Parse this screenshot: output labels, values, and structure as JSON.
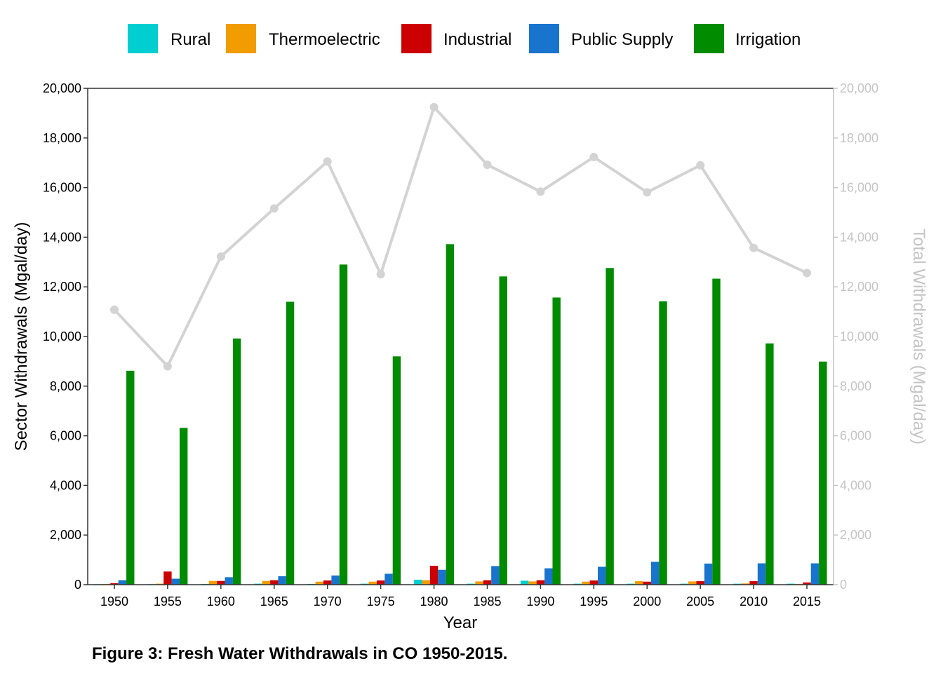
{
  "chart_data": {
    "type": "bar",
    "caption": "Figure 3: Fresh Water Withdrawals in CO 1950-2015.",
    "xlabel": "Year",
    "ylabel": "Sector Withdrawals (Mgal/day)",
    "y2label": "Total Withdrawals (Mgal/day)",
    "ylim": [
      0,
      20000
    ],
    "y2lim": [
      0,
      20000
    ],
    "yticks": [
      "0",
      "2,000",
      "4,000",
      "6,000",
      "8,000",
      "10,000",
      "12,000",
      "14,000",
      "16,000",
      "18,000",
      "20,000"
    ],
    "ytick_values": [
      0,
      2000,
      4000,
      6000,
      8000,
      10000,
      12000,
      14000,
      16000,
      18000,
      20000
    ],
    "legend_position": "top",
    "categories": [
      "1950",
      "1955",
      "1960",
      "1965",
      "1970",
      "1975",
      "1980",
      "1985",
      "1990",
      "1995",
      "2000",
      "2005",
      "2010",
      "2015"
    ],
    "series": [
      {
        "name": "Rural",
        "color": "#00ced1",
        "values": [
          20,
          20,
          30,
          40,
          30,
          40,
          200,
          40,
          160,
          40,
          40,
          40,
          40,
          40
        ]
      },
      {
        "name": "Thermoelectric",
        "color": "#f19c00",
        "values": [
          30,
          40,
          150,
          150,
          120,
          120,
          180,
          130,
          130,
          120,
          140,
          130,
          50,
          30
        ]
      },
      {
        "name": "Industrial",
        "color": "#cc0000",
        "values": [
          60,
          530,
          150,
          180,
          170,
          170,
          760,
          180,
          180,
          170,
          120,
          140,
          140,
          90
        ]
      },
      {
        "name": "Public Supply",
        "color": "#1874cd",
        "values": [
          180,
          240,
          300,
          340,
          370,
          440,
          600,
          750,
          660,
          720,
          920,
          850,
          860,
          860
        ]
      },
      {
        "name": "Irrigation",
        "color": "#008b00",
        "values": [
          8620,
          6320,
          9920,
          11400,
          12900,
          9200,
          13720,
          12420,
          11570,
          12760,
          11420,
          12330,
          9720,
          8990
        ]
      }
    ],
    "total_line": {
      "color": "#d3d3d3",
      "values": [
        11080,
        8800,
        13220,
        15160,
        17050,
        12510,
        19240,
        16920,
        15840,
        17230,
        15810,
        16900,
        13570,
        12560
      ]
    }
  }
}
